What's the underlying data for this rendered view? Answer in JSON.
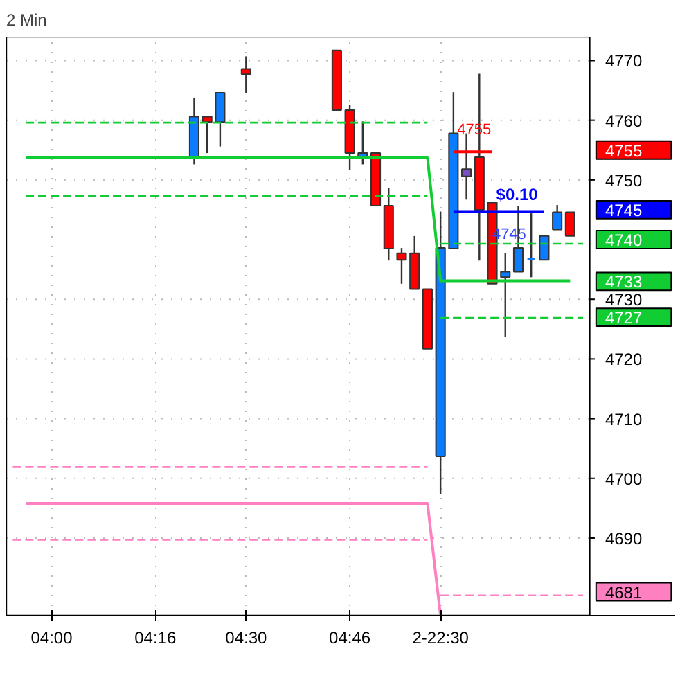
{
  "chart_data": {
    "type": "candlestick",
    "title": "2 Min",
    "categories": [
      null,
      null,
      null,
      "04:00",
      null,
      null,
      null,
      null,
      null,
      null,
      null,
      "04:16",
      null,
      null,
      null,
      null,
      null,
      null,
      "04:30",
      null,
      null,
      null,
      null,
      null,
      null,
      null,
      "04:46",
      null,
      null,
      null,
      null,
      null,
      null,
      "2-22:30",
      null,
      null,
      null,
      null,
      null,
      null,
      null,
      null,
      null,
      null,
      null
    ],
    "ylim": [
      4677,
      4774
    ],
    "yticks": [
      4690,
      4700,
      4710,
      4720,
      4730,
      4750,
      4760,
      4770
    ],
    "grid": true,
    "y2lim": [
      4677,
      4774
    ],
    "y2ticks": [
      4755,
      4745,
      4740,
      4733,
      4727,
      4681
    ],
    "ohlc": [
      null,
      null,
      null,
      null,
      null,
      null,
      null,
      null,
      null,
      null,
      null,
      null,
      null,
      null,
      [
        4753.7,
        4763.8,
        4752.6,
        4760.6
      ],
      [
        4760.6,
        4760.6,
        4754.5,
        4759.7
      ],
      [
        4759.7,
        4764.6,
        4755.6,
        4764.6
      ],
      null,
      [
        4768.6,
        4770.7,
        4764.5,
        4767.7
      ],
      null,
      null,
      null,
      null,
      null,
      null,
      [
        4771.7,
        4771.7,
        4761.7,
        4761.7
      ],
      [
        4761.7,
        4762.6,
        4751.7,
        4754.5
      ],
      [
        4753.7,
        4759.8,
        4752.6,
        4754.5
      ],
      [
        4754.5,
        4754.5,
        4745.7,
        4745.7
      ],
      [
        4745.7,
        4748.6,
        4736.5,
        4738.5
      ],
      [
        4737.7,
        4738.6,
        4732.6,
        4736.6
      ],
      [
        4737.7,
        4740.6,
        4731.7,
        4731.7
      ],
      [
        4731.7,
        4731.7,
        4721.7,
        4721.7
      ],
      [
        4703.7,
        4744.7,
        4697.4,
        4738.6
      ],
      [
        4738.5,
        4764.7,
        4738.5,
        4757.8
      ],
      [
        4750.6,
        4757.8,
        4746.7,
        4751.8
      ],
      [
        4753.8,
        4767.8,
        4736.5,
        4745.0
      ],
      [
        4746.2,
        4746.2,
        4732.6,
        4732.6
      ],
      [
        4733.7,
        4737.8,
        4723.7,
        4734.6
      ],
      [
        4734.6,
        4745.6,
        4734.6,
        4738.6
      ],
      [
        4736.7,
        4744.4,
        4733.7,
        4736.7
      ],
      [
        4736.6,
        4740.6,
        4736.6,
        4740.6
      ],
      [
        4741.7,
        4745.8,
        4741.7,
        4744.6
      ],
      [
        4744.6,
        4744.6,
        4740.6,
        4740.6
      ],
      null
    ],
    "colors": [
      null,
      null,
      null,
      null,
      null,
      null,
      null,
      null,
      null,
      null,
      null,
      null,
      null,
      null,
      "#0a7cff",
      "#ff0000",
      "#0a7cff",
      null,
      "#ff0000",
      null,
      null,
      null,
      null,
      null,
      null,
      "#ff0000",
      "#ff0000",
      "#0a7cff",
      "#ff0000",
      "#ff0000",
      "#ff0000",
      "#ff0000",
      "#ff0000",
      "#0a7cff",
      "#0a7cff",
      "#7a50c0",
      "#ff0000",
      "#ff0000",
      "#0a7cff",
      "#0a7cff",
      "#0a7cff",
      "#0a7cff",
      "#0a7cff",
      "#ff0000",
      null
    ],
    "series": [
      {
        "type": "line",
        "color": "#11cc33",
        "line_style": "solid",
        "values": [
          null,
          4753.7,
          4753.7,
          4753.7,
          4753.7,
          4753.7,
          4753.7,
          4753.7,
          4753.7,
          4753.7,
          4753.7,
          4753.7,
          4753.7,
          4753.7,
          4753.7,
          4753.7,
          4753.7,
          4753.7,
          4753.7,
          4753.7,
          4753.7,
          4753.7,
          4753.7,
          4753.7,
          4753.7,
          4753.7,
          4753.7,
          4753.7,
          4753.7,
          4753.7,
          4753.7,
          4753.7,
          4753.7,
          4733.1,
          4733.1,
          4733.1,
          4733.1,
          4733.1,
          4733.1,
          4733.1,
          4733.1,
          4733.1,
          4733.1,
          4733.1,
          null
        ]
      },
      {
        "type": "line",
        "color": "#11cc33",
        "line_style": "dashed",
        "values": [
          null,
          4759.6,
          4759.6,
          4759.6,
          4759.6,
          4759.6,
          4759.6,
          4759.6,
          4759.6,
          4759.6,
          4759.6,
          4759.6,
          4759.6,
          4759.6,
          4759.6,
          4759.6,
          4759.6,
          4759.6,
          4759.6,
          4759.6,
          4759.6,
          4759.6,
          4759.6,
          4759.6,
          4759.6,
          4759.6,
          4759.6,
          4759.6,
          4759.6,
          4759.6,
          4759.6,
          4759.6,
          4759.6,
          null,
          null,
          null,
          null,
          null,
          null,
          null,
          null,
          null,
          null,
          null,
          null
        ]
      },
      {
        "type": "line",
        "color": "#11cc33",
        "line_style": "dashed",
        "values": [
          null,
          4747.3,
          4747.3,
          4747.3,
          4747.3,
          4747.3,
          4747.3,
          4747.3,
          4747.3,
          4747.3,
          4747.3,
          4747.3,
          4747.3,
          4747.3,
          4747.3,
          4747.3,
          4747.3,
          4747.3,
          4747.3,
          4747.3,
          4747.3,
          4747.3,
          4747.3,
          4747.3,
          4747.3,
          4747.3,
          4747.3,
          4747.3,
          4747.3,
          4747.3,
          4747.3,
          4747.3,
          4747.3,
          null,
          null,
          null,
          null,
          null,
          null,
          null,
          null,
          null,
          null,
          null,
          null
        ]
      },
      {
        "type": "line",
        "color": "#11cc33",
        "line_style": "dashed",
        "values": [
          null,
          null,
          null,
          null,
          null,
          null,
          null,
          null,
          null,
          null,
          null,
          null,
          null,
          null,
          null,
          null,
          null,
          null,
          null,
          null,
          null,
          null,
          null,
          null,
          null,
          null,
          null,
          null,
          null,
          null,
          null,
          null,
          null,
          4739.3,
          4739.3,
          4739.3,
          4739.3,
          4739.3,
          4739.3,
          4739.3,
          4739.3,
          4739.3,
          4739.3,
          4739.3,
          4739.3
        ]
      },
      {
        "type": "line",
        "color": "#11cc33",
        "line_style": "dashed",
        "values": [
          null,
          null,
          null,
          null,
          null,
          null,
          null,
          null,
          null,
          null,
          null,
          null,
          null,
          null,
          null,
          null,
          null,
          null,
          null,
          null,
          null,
          null,
          null,
          null,
          null,
          null,
          null,
          null,
          null,
          null,
          null,
          null,
          null,
          4726.9,
          4726.9,
          4726.9,
          4726.9,
          4726.9,
          4726.9,
          4726.9,
          4726.9,
          4726.9,
          4726.9,
          4726.9,
          4726.9
        ]
      },
      {
        "type": "line",
        "color": "#ff80c0",
        "line_style": "solid",
        "values": [
          null,
          4695.8,
          4695.8,
          4695.8,
          4695.8,
          4695.8,
          4695.8,
          4695.8,
          4695.8,
          4695.8,
          4695.8,
          4695.8,
          4695.8,
          4695.8,
          4695.8,
          4695.8,
          4695.8,
          4695.8,
          4695.8,
          4695.8,
          4695.8,
          4695.8,
          4695.8,
          4695.8,
          4695.8,
          4695.8,
          4695.8,
          4695.8,
          4695.8,
          4695.8,
          4695.8,
          4695.8,
          4695.8,
          4677,
          null,
          null,
          null,
          null,
          null,
          null,
          null,
          null,
          null,
          null,
          null
        ]
      },
      {
        "type": "line",
        "color": "#ff80c0",
        "line_style": "dashed",
        "values": [
          4701.9,
          4701.9,
          4701.9,
          4701.9,
          4701.9,
          4701.9,
          4701.9,
          4701.9,
          4701.9,
          4701.9,
          4701.9,
          4701.9,
          4701.9,
          4701.9,
          4701.9,
          4701.9,
          4701.9,
          4701.9,
          4701.9,
          4701.9,
          4701.9,
          4701.9,
          4701.9,
          4701.9,
          4701.9,
          4701.9,
          4701.9,
          4701.9,
          4701.9,
          4701.9,
          4701.9,
          4701.9,
          4701.9,
          null,
          null,
          null,
          null,
          null,
          null,
          null,
          null,
          null,
          null,
          null,
          null
        ]
      },
      {
        "type": "line",
        "color": "#ff80c0",
        "line_style": "dashed",
        "values": [
          4689.7,
          4689.7,
          4689.7,
          4689.7,
          4689.7,
          4689.7,
          4689.7,
          4689.7,
          4689.7,
          4689.7,
          4689.7,
          4689.7,
          4689.7,
          4689.7,
          4689.7,
          4689.7,
          4689.7,
          4689.7,
          4689.7,
          4689.7,
          4689.7,
          4689.7,
          4689.7,
          4689.7,
          4689.7,
          4689.7,
          4689.7,
          4689.7,
          4689.7,
          4689.7,
          4689.7,
          4689.7,
          4689.7,
          null,
          null,
          null,
          null,
          null,
          null,
          null,
          null,
          null,
          null,
          null,
          null
        ]
      },
      {
        "type": "line",
        "color": "#ff80c0",
        "line_style": "dashed",
        "values": [
          null,
          null,
          null,
          null,
          null,
          null,
          null,
          null,
          null,
          null,
          null,
          null,
          null,
          null,
          null,
          null,
          null,
          null,
          null,
          null,
          null,
          null,
          null,
          null,
          null,
          null,
          null,
          null,
          null,
          null,
          null,
          null,
          null,
          4680.4,
          4680.4,
          4680.4,
          4680.4,
          4680.4,
          4680.4,
          4680.4,
          4680.4,
          4680.4,
          4680.4,
          4680.4,
          4680.4
        ]
      },
      {
        "type": "line",
        "color": "#ff0000",
        "line_style": "solid",
        "values": [
          null,
          null,
          null,
          null,
          null,
          null,
          null,
          null,
          null,
          null,
          null,
          null,
          null,
          null,
          null,
          null,
          null,
          null,
          null,
          null,
          null,
          null,
          null,
          null,
          null,
          null,
          null,
          null,
          null,
          null,
          null,
          null,
          null,
          null,
          4754.7,
          4754.7,
          4754.7,
          4754.7,
          null,
          null,
          null,
          null,
          null,
          null,
          null
        ]
      },
      {
        "type": "line",
        "color": "#0000ff",
        "line_style": "solid",
        "values": [
          null,
          null,
          null,
          null,
          null,
          null,
          null,
          null,
          null,
          null,
          null,
          null,
          null,
          null,
          null,
          null,
          null,
          null,
          null,
          null,
          null,
          null,
          null,
          null,
          null,
          null,
          null,
          null,
          null,
          null,
          null,
          null,
          null,
          null,
          4744.7,
          4744.7,
          4744.7,
          4744.7,
          4744.7,
          4744.7,
          4744.7,
          4744.7,
          null,
          null,
          null
        ]
      }
    ],
    "annotations": [
      "4755",
      "$0.10",
      "4745"
    ]
  }
}
